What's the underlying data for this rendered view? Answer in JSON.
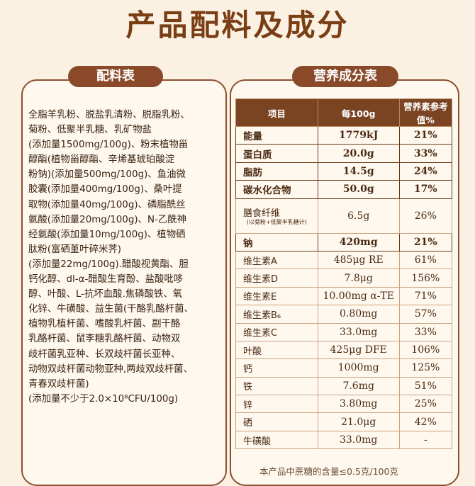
{
  "page_title": "产品配料及成分",
  "ingredients": {
    "header": "配料表",
    "lines": [
      "全脂羊乳粉、脱盐乳清粉、脱脂乳粉、",
      "菊粉、低聚半乳糖、乳矿物盐",
      "(添加量1500mg/100g)、粉末植物甾",
      "醇酯(植物甾醇酯、辛烯基琥珀酸淀",
      "粉钠)(添加量500mg/100g)、鱼油微",
      "胶囊(添加量400mg/100g)、桑叶提",
      "取物(添加量40mg/100g)、磷脂酰丝",
      "氨酸(添加量20mg/100g)、N-乙酰神",
      "经氨酸(添加量10mg/100g)、植物硒",
      "肽粉(富硒堇叶碎米荠)",
      "(添加量22mg/100g).醋酸视黄酯、胆",
      "钙化醇、dl-α-醋酸生育酚、盐酸吡哆",
      "醇、叶酸、L-抗坏血酸.焦磷酸铁、氧",
      "化锌、牛磺酸、益生菌(干酪乳酪杆菌、",
      "植物乳植杆菌、嗜酸乳杆菌、副干酪",
      "乳酪杆菌、鼠李糖乳酪杆菌、动物双",
      "歧杆菌乳亚种、长双歧杆菌长亚种、",
      "动物双歧杆菌动物亚种,两歧双歧杆菌、",
      "青春双歧杆菌)",
      "(添加量不少于2.0×10⁸CFU/100g)"
    ]
  },
  "nutrition": {
    "header": "营养成分表",
    "columns": [
      "项目",
      "每100g",
      "营养素参考值%"
    ],
    "rows": [
      {
        "item": "能量",
        "per100g": "1779kJ",
        "nrv": "21%",
        "bold": true
      },
      {
        "item": "蛋白质",
        "per100g": "20.0g",
        "nrv": "33%",
        "bold": true
      },
      {
        "item": "脂肪",
        "per100g": "14.5g",
        "nrv": "24%",
        "bold": true
      },
      {
        "item": "碳水化合物",
        "per100g": "50.0g",
        "nrv": "17%",
        "bold": true
      },
      {
        "item": "膳食纤维",
        "note": "(以菊粉+低聚半乳糖计)",
        "per100g": "6.5g",
        "nrv": "26%",
        "bold": false
      },
      {
        "item": "钠",
        "per100g": "420mg",
        "nrv": "21%",
        "bold": true
      },
      {
        "item": "维生素A",
        "per100g": "485μg RE",
        "nrv": "61%",
        "bold": false
      },
      {
        "item": "维生素D",
        "per100g": "7.8μg",
        "nrv": "156%",
        "bold": false
      },
      {
        "item": "维生素E",
        "per100g": "10.00mg α-TE",
        "nrv": "71%",
        "bold": false
      },
      {
        "item": "维生素B₆",
        "per100g": "0.80mg",
        "nrv": "57%",
        "bold": false
      },
      {
        "item": "维生素C",
        "per100g": "33.0mg",
        "nrv": "33%",
        "bold": false
      },
      {
        "item": "叶酸",
        "per100g": "425μg DFE",
        "nrv": "106%",
        "bold": false
      },
      {
        "item": "钙",
        "per100g": "1000mg",
        "nrv": "125%",
        "bold": false
      },
      {
        "item": "铁",
        "per100g": "7.6mg",
        "nrv": "51%",
        "bold": false
      },
      {
        "item": "锌",
        "per100g": "3.80mg",
        "nrv": "25%",
        "bold": false
      },
      {
        "item": "硒",
        "per100g": "21.0μg",
        "nrv": "42%",
        "bold": false
      },
      {
        "item": "牛磺酸",
        "per100g": "33.0mg",
        "nrv": "-",
        "bold": false
      }
    ],
    "footnote": "本产品中蔗糖的含量≤0.5克/100克"
  }
}
